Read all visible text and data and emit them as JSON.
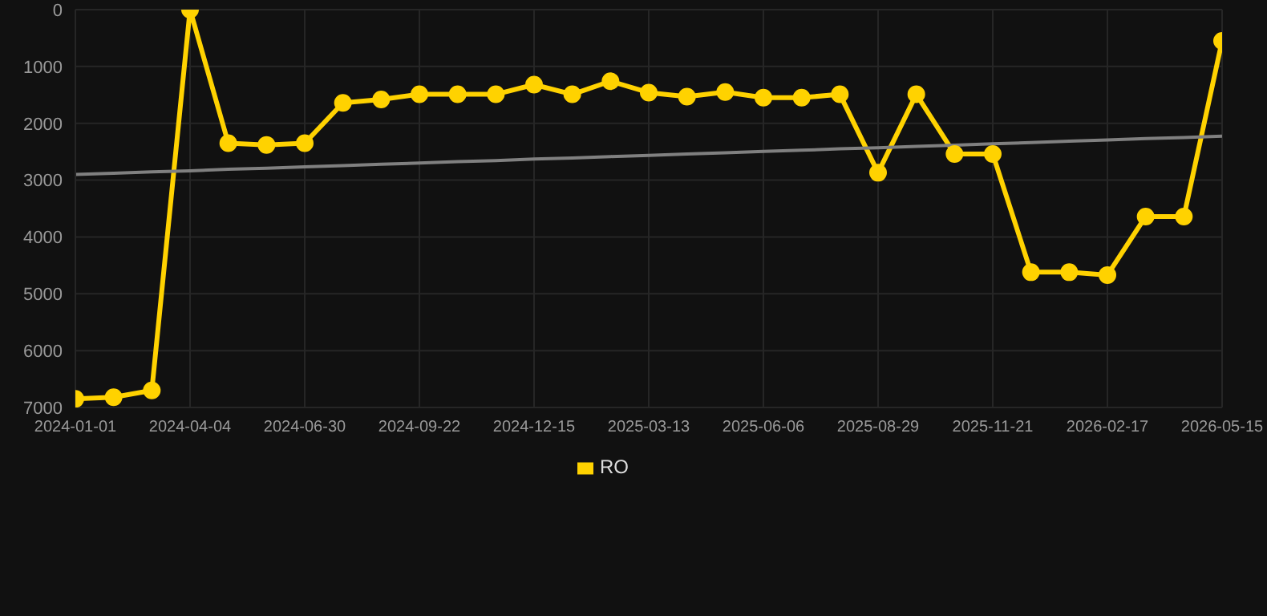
{
  "chart_data": {
    "type": "line",
    "categories": [
      "2024-01-01",
      null,
      null,
      "2024-04-04",
      null,
      null,
      "2024-06-30",
      null,
      null,
      "2024-09-22",
      null,
      null,
      "2024-12-15",
      null,
      null,
      "2025-03-13",
      null,
      null,
      "2025-06-06",
      null,
      null,
      "2025-08-29",
      null,
      null,
      "2025-11-21",
      null,
      null,
      "2026-02-17",
      null,
      null,
      "2026-05-15"
    ],
    "series": [
      {
        "name": "RO",
        "color": "#ffd200",
        "marker": "circle",
        "values": [
          6850,
          6820,
          6700,
          0,
          2350,
          2380,
          2350,
          1640,
          1580,
          1490,
          1490,
          1490,
          1320,
          1490,
          1260,
          1460,
          1530,
          1450,
          1550,
          1550,
          1490,
          2870,
          1490,
          2540,
          2540,
          4620,
          4620,
          4670,
          3640,
          3640,
          550
        ]
      },
      {
        "type": "line",
        "color": "#808080",
        "marker": "none",
        "values": [
          2900,
          2880,
          2855,
          2835,
          2810,
          2790,
          2765,
          2745,
          2720,
          2700,
          2675,
          2655,
          2630,
          2610,
          2585,
          2565,
          2540,
          2520,
          2495,
          2475,
          2450,
          2430,
          2405,
          2385,
          2360,
          2340,
          2315,
          2295,
          2270,
          2250,
          2225
        ]
      }
    ],
    "ylim": [
      7000,
      0
    ],
    "yticks": [
      0,
      1000,
      2000,
      3000,
      4000,
      5000,
      6000,
      7000
    ],
    "grid": true,
    "legend": "bottom"
  }
}
